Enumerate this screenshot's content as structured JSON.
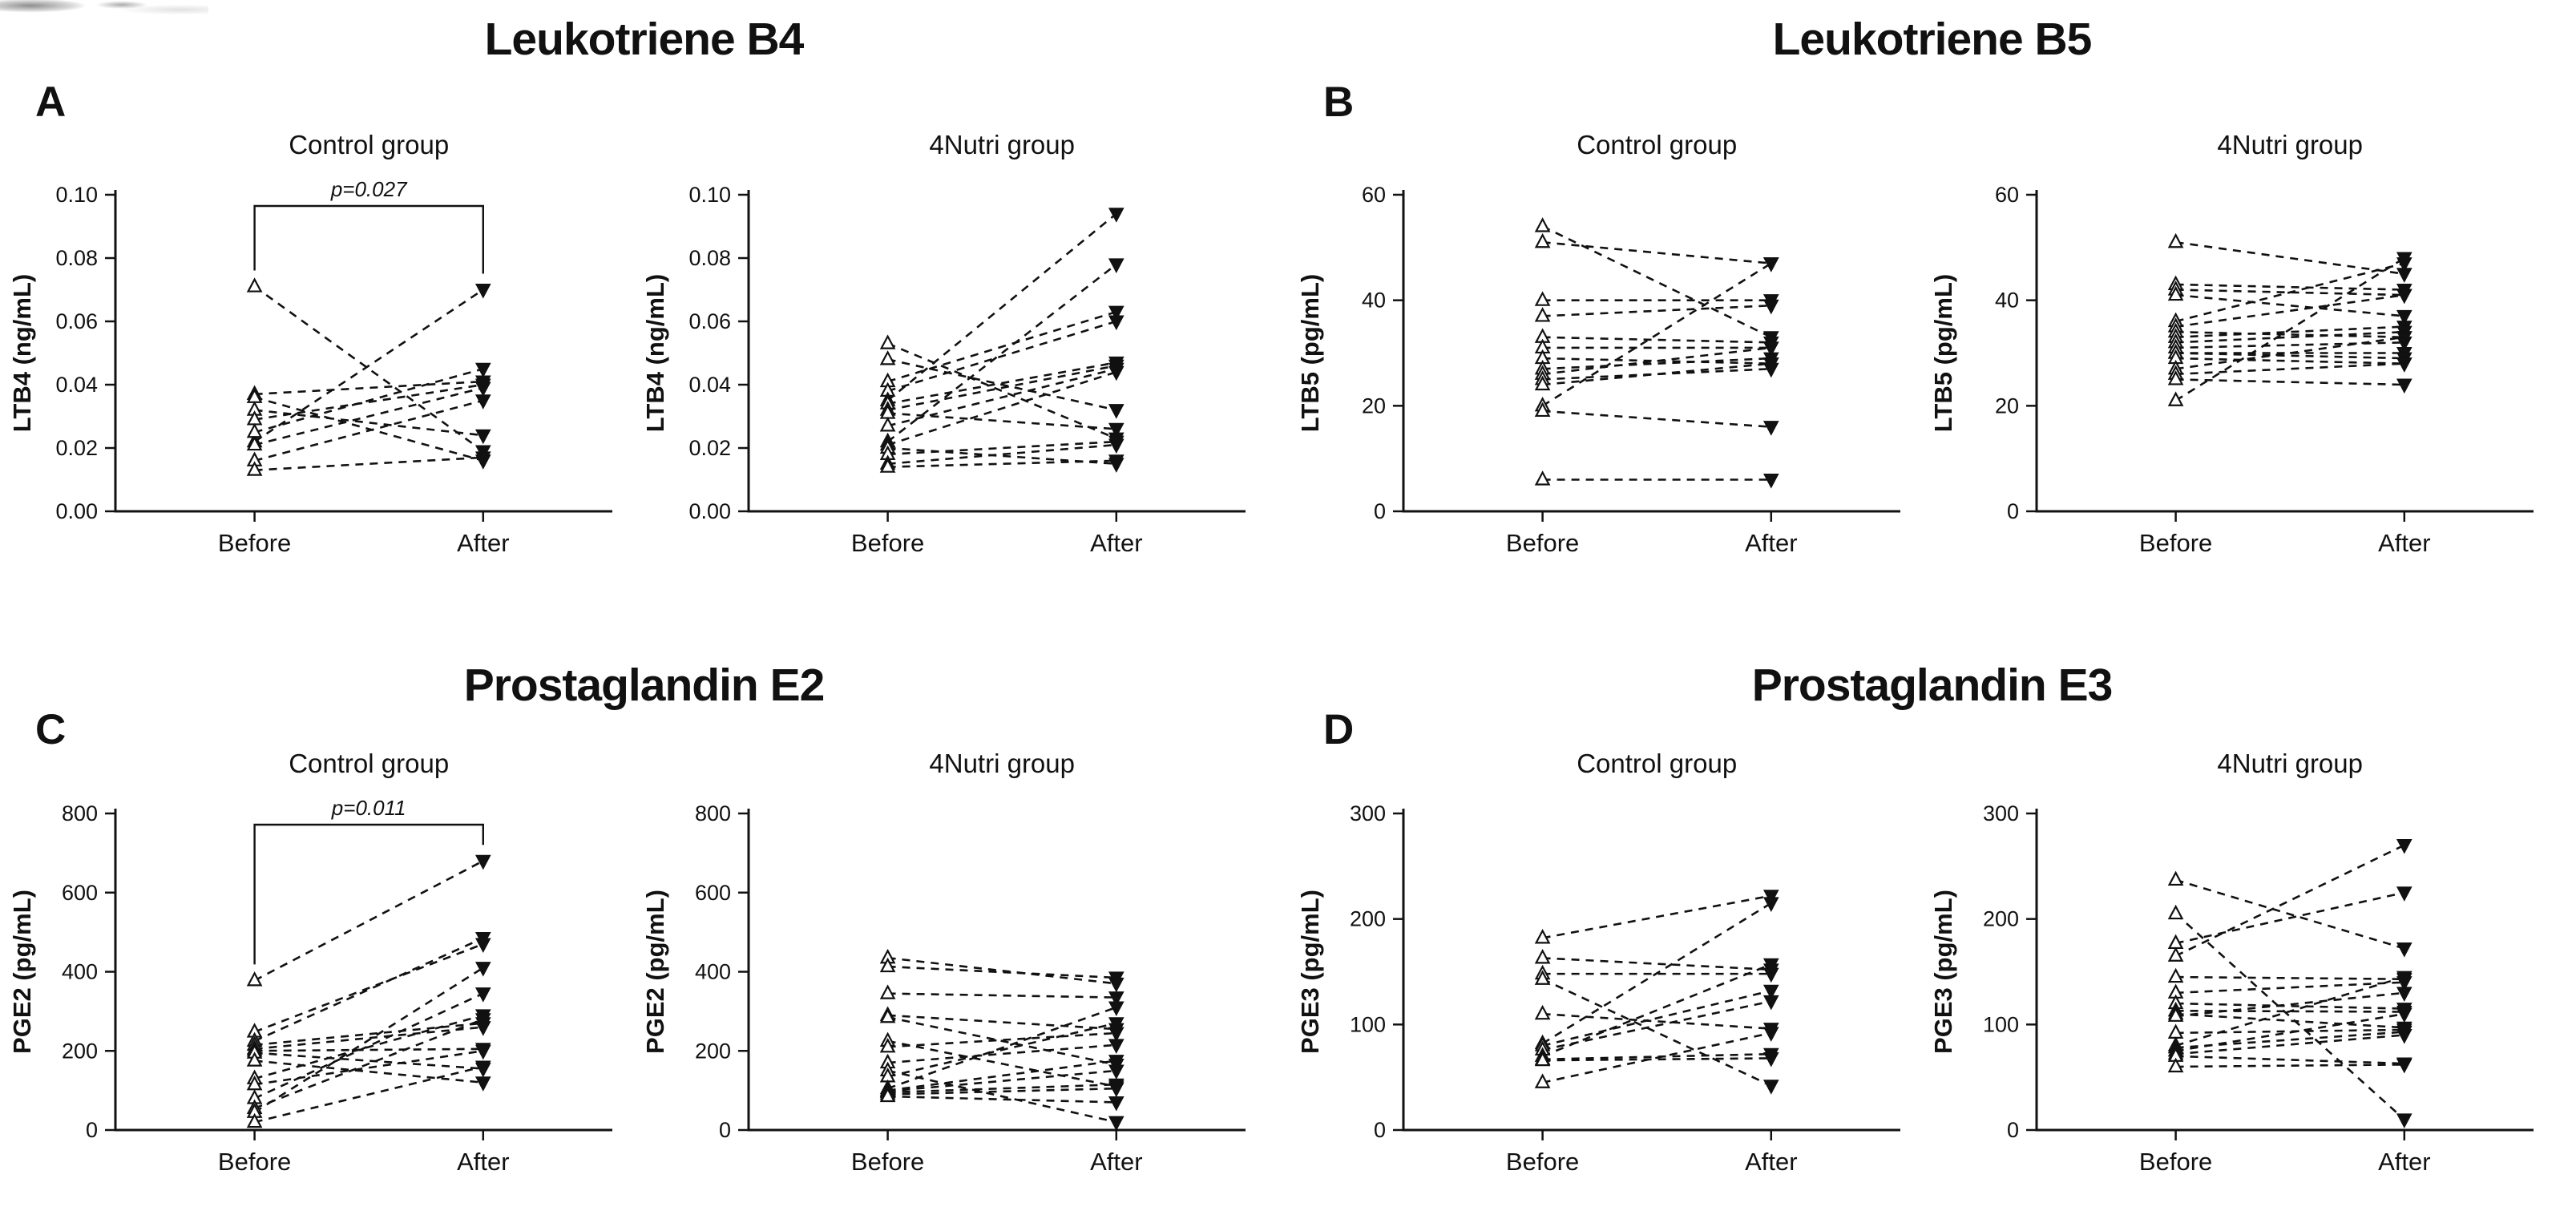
{
  "figure": {
    "background": "#ffffff",
    "ink_color": "#111111",
    "marker_before": "open-up-triangle",
    "marker_after": "filled-down-triangle",
    "line_style": "dashed"
  },
  "chart_data": [
    {
      "panel_letter": "A",
      "title": "Leukotriene B4",
      "type": "line",
      "subtype": "paired-before-after",
      "categories": [
        "Before",
        "After"
      ],
      "subplots": [
        {
          "title": "Control group",
          "ylabel": "LTB4 (ng/mL)",
          "ylim": [
            0,
            0.1
          ],
          "yticks": [
            0,
            0.02,
            0.04,
            0.06,
            0.08,
            0.1
          ],
          "ytick_decimals": 2,
          "significance": "p=0.027",
          "pairs": [
            [
              0.071,
              0.019
            ],
            [
              0.022,
              0.07
            ],
            [
              0.037,
              0.041
            ],
            [
              0.036,
              0.016
            ],
            [
              0.032,
              0.024
            ],
            [
              0.029,
              0.04
            ],
            [
              0.025,
              0.045
            ],
            [
              0.021,
              0.039
            ],
            [
              0.016,
              0.035
            ],
            [
              0.013,
              0.017
            ]
          ]
        },
        {
          "title": "4Nutri group",
          "ylabel": "LTB4 (ng/mL)",
          "ylim": [
            0,
            0.1
          ],
          "yticks": [
            0,
            0.02,
            0.04,
            0.06,
            0.08,
            0.1
          ],
          "ytick_decimals": 2,
          "significance": null,
          "pairs": [
            [
              0.053,
              0.023
            ],
            [
              0.048,
              0.032
            ],
            [
              0.041,
              0.063
            ],
            [
              0.038,
              0.06
            ],
            [
              0.035,
              0.094
            ],
            [
              0.034,
              0.047
            ],
            [
              0.032,
              0.046
            ],
            [
              0.031,
              0.026
            ],
            [
              0.027,
              0.045
            ],
            [
              0.022,
              0.078
            ],
            [
              0.021,
              0.044
            ],
            [
              0.02,
              0.015
            ],
            [
              0.018,
              0.022
            ],
            [
              0.015,
              0.021
            ],
            [
              0.014,
              0.016
            ]
          ]
        }
      ]
    },
    {
      "panel_letter": "B",
      "title": "Leukotriene B5",
      "type": "line",
      "subtype": "paired-before-after",
      "categories": [
        "Before",
        "After"
      ],
      "subplots": [
        {
          "title": "Control group",
          "ylabel": "LTB5 (pg/mL)",
          "ylim": [
            0,
            60
          ],
          "yticks": [
            0,
            20,
            40,
            60
          ],
          "ytick_decimals": 0,
          "significance": null,
          "pairs": [
            [
              54,
              33
            ],
            [
              51,
              47
            ],
            [
              40,
              40
            ],
            [
              37,
              39
            ],
            [
              33,
              32
            ],
            [
              31,
              31
            ],
            [
              29,
              28
            ],
            [
              27,
              29
            ],
            [
              26,
              31
            ],
            [
              25,
              27
            ],
            [
              24,
              28
            ],
            [
              20,
              47
            ],
            [
              19,
              16
            ],
            [
              6,
              6
            ]
          ]
        },
        {
          "title": "4Nutri group",
          "ylabel": "LTB5 (pg/mL)",
          "ylim": [
            0,
            60
          ],
          "yticks": [
            0,
            20,
            40,
            60
          ],
          "ytick_decimals": 0,
          "significance": null,
          "pairs": [
            [
              51,
              45
            ],
            [
              43,
              42
            ],
            [
              42,
              41
            ],
            [
              41,
              37
            ],
            [
              36,
              47
            ],
            [
              35,
              41
            ],
            [
              34,
              33
            ],
            [
              33,
              35
            ],
            [
              32,
              34
            ],
            [
              31,
              32
            ],
            [
              30,
              30
            ],
            [
              30,
              29
            ],
            [
              29,
              28
            ],
            [
              27,
              33
            ],
            [
              26,
              28
            ],
            [
              25,
              24
            ],
            [
              21,
              48
            ]
          ]
        }
      ]
    },
    {
      "panel_letter": "C",
      "title": "Prostaglandin E2",
      "type": "line",
      "subtype": "paired-before-after",
      "categories": [
        "Before",
        "After"
      ],
      "subplots": [
        {
          "title": "Control group",
          "ylabel": "PGE2 (pg/mL)",
          "ylim": [
            0,
            800
          ],
          "yticks": [
            0,
            200,
            400,
            600,
            800
          ],
          "ytick_decimals": 0,
          "significance": "p=0.011",
          "pairs": [
            [
              378,
              680
            ],
            [
              248,
              470
            ],
            [
              225,
              485
            ],
            [
              215,
              270
            ],
            [
              205,
              260
            ],
            [
              200,
              205
            ],
            [
              195,
              155
            ],
            [
              175,
              120
            ],
            [
              130,
              290
            ],
            [
              115,
              200
            ],
            [
              80,
              345
            ],
            [
              55,
              280
            ],
            [
              45,
              410
            ],
            [
              20,
              160
            ]
          ]
        },
        {
          "title": "4Nutri group",
          "ylabel": "PGE2 (pg/mL)",
          "ylim": [
            0,
            800
          ],
          "yticks": [
            0,
            200,
            400,
            600,
            800
          ],
          "ytick_decimals": 0,
          "significance": null,
          "pairs": [
            [
              435,
              370
            ],
            [
              413,
              385
            ],
            [
              345,
              335
            ],
            [
              290,
              255
            ],
            [
              285,
              165
            ],
            [
              225,
              110
            ],
            [
              210,
              245
            ],
            [
              170,
              215
            ],
            [
              150,
              20
            ],
            [
              135,
              270
            ],
            [
              105,
              310
            ],
            [
              100,
              175
            ],
            [
              98,
              150
            ],
            [
              95,
              115
            ],
            [
              90,
              105
            ],
            [
              85,
              70
            ]
          ]
        }
      ]
    },
    {
      "panel_letter": "D",
      "title": "Prostaglandin E3",
      "type": "line",
      "subtype": "paired-before-after",
      "categories": [
        "Before",
        "After"
      ],
      "subplots": [
        {
          "title": "Control group",
          "ylabel": "PGE3 (pg/mL)",
          "ylim": [
            0,
            300
          ],
          "yticks": [
            0,
            100,
            200,
            300
          ],
          "ytick_decimals": 0,
          "significance": null,
          "pairs": [
            [
              182,
              222
            ],
            [
              163,
              152
            ],
            [
              148,
              148
            ],
            [
              143,
              42
            ],
            [
              110,
              96
            ],
            [
              82,
              215
            ],
            [
              80,
              132
            ],
            [
              76,
              122
            ],
            [
              70,
              157
            ],
            [
              67,
              72
            ],
            [
              66,
              68
            ],
            [
              45,
              92
            ]
          ]
        },
        {
          "title": "4Nutri group",
          "ylabel": "PGE3 (pg/mL)",
          "ylim": [
            0,
            300
          ],
          "yticks": [
            0,
            100,
            200,
            300
          ],
          "ytick_decimals": 0,
          "significance": null,
          "pairs": [
            [
              237,
              172
            ],
            [
              205,
              10
            ],
            [
              177,
              225
            ],
            [
              165,
              270
            ],
            [
              145,
              143
            ],
            [
              130,
              140
            ],
            [
              120,
              115
            ],
            [
              113,
              112
            ],
            [
              110,
              97
            ],
            [
              108,
              130
            ],
            [
              92,
              95
            ],
            [
              80,
              145
            ],
            [
              78,
              93
            ],
            [
              75,
              110
            ],
            [
              72,
              90
            ],
            [
              70,
              63
            ],
            [
              60,
              62
            ]
          ]
        }
      ]
    }
  ]
}
